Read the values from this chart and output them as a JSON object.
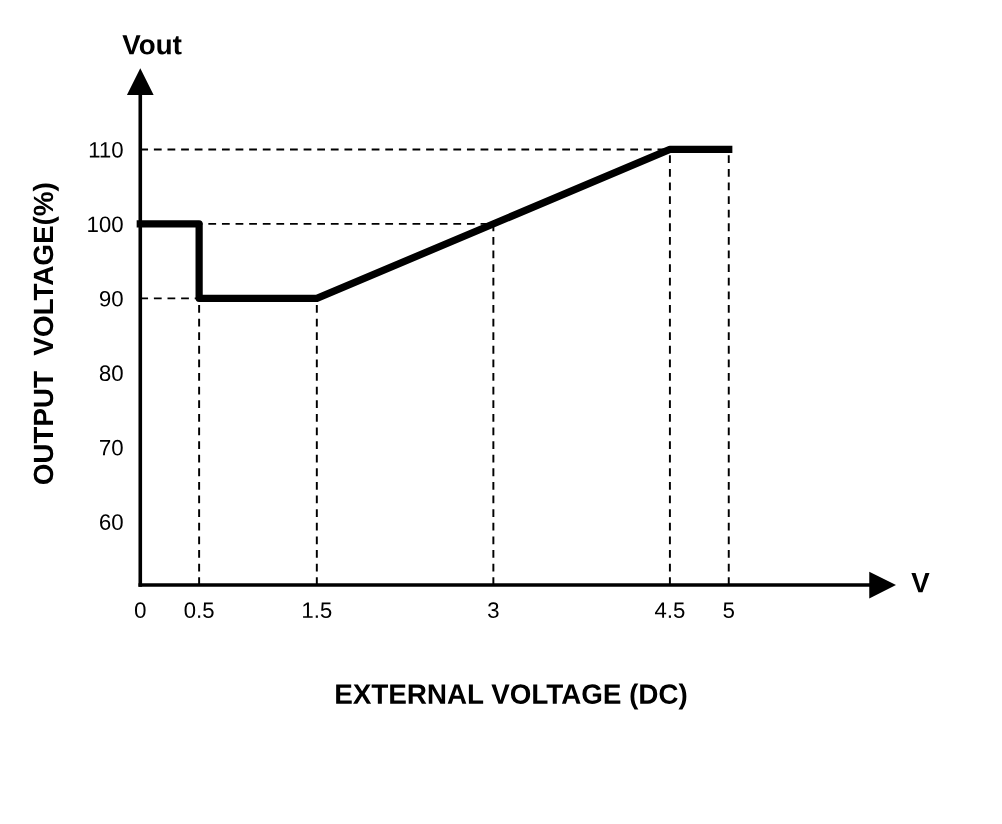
{
  "chart_data": {
    "type": "line",
    "xlabel": "EXTERNAL VOLTAGE (DC)",
    "ylabel": "OUTPUT  VOLTAGE(%)",
    "annotations": [
      "Vout",
      "V"
    ],
    "series": [
      {
        "color": "#000000",
        "x": [
          0,
          0.5,
          0.5,
          1.5,
          4.5,
          5
        ],
        "values": [
          100,
          100,
          90,
          90,
          110,
          110
        ]
      }
    ],
    "xlim": [
      0,
      6.3
    ],
    "ylim": [
      51.5,
      119
    ],
    "xticks": [
      0,
      0.5,
      1.5,
      3,
      4.5,
      5
    ],
    "yticks": [
      60,
      70,
      80,
      90,
      100,
      110
    ],
    "ref_lines": [
      {
        "axis": "y",
        "value": 110,
        "line_style": "dashed"
      },
      {
        "axis": "y",
        "value": 100,
        "line_style": "dashed"
      },
      {
        "axis": "y",
        "value": 90,
        "line_style": "dashed"
      },
      {
        "axis": "x",
        "value": 0.5,
        "line_style": "dashed"
      },
      {
        "axis": "x",
        "value": 1.5,
        "line_style": "dashed"
      },
      {
        "axis": "x",
        "value": 3,
        "line_style": "dashed"
      },
      {
        "axis": "x",
        "value": 4.5,
        "line_style": "dashed"
      },
      {
        "axis": "x",
        "value": 5,
        "line_style": "dashed"
      }
    ],
    "grid": false,
    "legend": false,
    "line_style": "solid",
    "marker": "none"
  }
}
